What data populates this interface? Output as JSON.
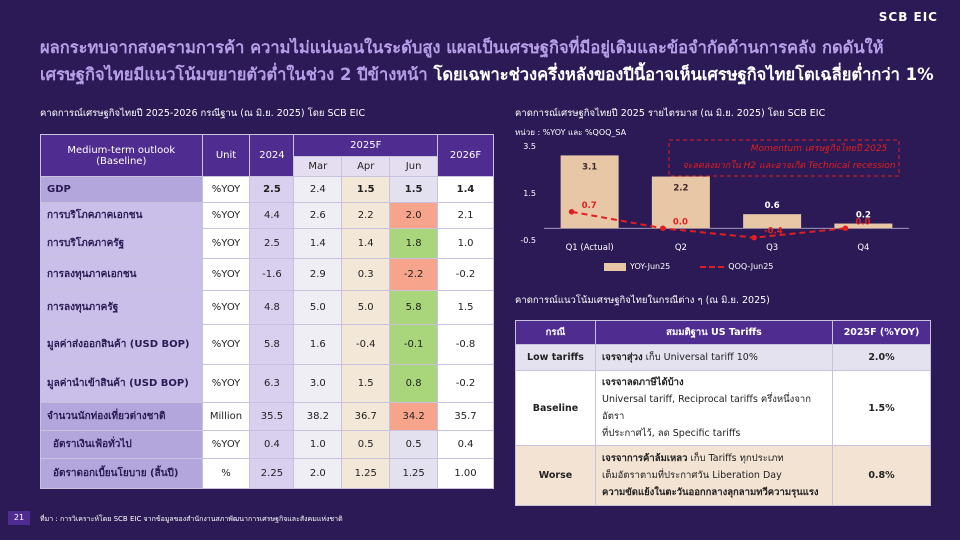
{
  "logo": "SCB EIC",
  "headline": {
    "part1": "ผลกระทบจากสงครามการค้า ความไม่แน่นอนในระดับสูง แผลเป็นเศรษฐกิจที่มีอยู่เดิมและข้อจำกัดด้านการคลัง กดดันให้ เศรษฐกิจไทยมีแนวโน้มขยายตัวต่ำในช่วง 2 ปีข้างหน้า ",
    "part2": "โดยเฉพาะช่วงครึ่งหลังของปีนี้อาจเห็นเศรษฐกิจไทยโตเฉลี่ยต่ำกว่า 1%"
  },
  "left_title": "คาดการณ์เศรษฐกิจไทยปี 2025-2026 กรณีฐาน (ณ มิ.ย. 2025) โดย SCB EIC",
  "left_table": {
    "h_outlook": "Medium-term outlook",
    "h_baseline": "(Baseline)",
    "h_unit": "Unit",
    "h_2024": "2024",
    "h_2025f": "2025F",
    "h_mar": "Mar",
    "h_apr": "Apr",
    "h_jun": "Jun",
    "h_2026f": "2026F",
    "rows": [
      {
        "label": "GDP",
        "unit": "%YOY",
        "y2024": "2.5",
        "mar": "2.4",
        "apr": "1.5",
        "jun": "1.5",
        "f26": "1.4"
      },
      {
        "label": "การบริโภคภาคเอกชน",
        "unit": "%YOY",
        "y2024": "4.4",
        "mar": "2.6",
        "apr": "2.2",
        "jun": "2.0",
        "f26": "2.1"
      },
      {
        "label": "การบริโภคภาครัฐ",
        "unit": "%YOY",
        "y2024": "2.5",
        "mar": "1.4",
        "apr": "1.4",
        "jun": "1.8",
        "f26": "1.0"
      },
      {
        "label": "การลงทุนภาคเอกชน",
        "unit": "%YOY",
        "y2024": "-1.6",
        "mar": "2.9",
        "apr": "0.3",
        "jun": "-2.2",
        "f26": "-0.2"
      },
      {
        "label": "การลงทุนภาครัฐ",
        "unit": "%YOY",
        "y2024": "4.8",
        "mar": "5.0",
        "apr": "5.0",
        "jun": "5.8",
        "f26": "1.5"
      },
      {
        "label": "มูลค่าส่งออกสินค้า (USD BOP)",
        "unit": "%YOY",
        "y2024": "5.8",
        "mar": "1.6",
        "apr": "-0.4",
        "jun": "-0.1",
        "f26": "-0.8"
      },
      {
        "label": "มูลค่านำเข้าสินค้า (USD BOP)",
        "unit": "%YOY",
        "y2024": "6.3",
        "mar": "3.0",
        "apr": "1.5",
        "jun": "0.8",
        "f26": "-0.2"
      },
      {
        "label": "จำนวนนักท่องเที่ยวต่างชาติ",
        "unit": "Million",
        "y2024": "35.5",
        "mar": "38.2",
        "apr": "36.7",
        "jun": "34.2",
        "f26": "35.7"
      },
      {
        "label": "อัตราเงินเฟ้อทั่วไป",
        "unit": "%YOY",
        "y2024": "0.4",
        "mar": "1.0",
        "apr": "0.5",
        "jun": "0.5",
        "f26": "0.4"
      },
      {
        "label": "อัตราดอกเบี้ยนโยบาย (สิ้นปี)",
        "unit": "%",
        "y2024": "2.25",
        "mar": "2.0",
        "apr": "1.25",
        "jun": "1.25",
        "f26": "1.00"
      }
    ]
  },
  "chart_title": "คาดการณ์เศรษฐกิจไทยปี 2025 รายไตรมาส (ณ มิ.ย. 2025) โดย SCB EIC",
  "chart_data": {
    "type": "bar",
    "unit_label": "หน่วย : %YOY และ %QOQ_SA",
    "categories": [
      "Q1 (Actual)",
      "Q2",
      "Q3",
      "Q4"
    ],
    "ylim": [
      -0.5,
      3.5
    ],
    "yticks": [
      "3.5",
      "1.5",
      "-0.5"
    ],
    "series": [
      {
        "name": "YOY-Jun25",
        "type": "bar",
        "values": [
          3.1,
          2.2,
          0.6,
          0.2
        ],
        "labels": [
          "3.1",
          "2.2",
          "0.6",
          "0.2"
        ],
        "color": "#e7c7a6"
      },
      {
        "name": "QOQ-Jun25",
        "type": "line",
        "values": [
          0.7,
          0.0,
          -0.4,
          0.0
        ],
        "labels": [
          "0.7",
          "0.0",
          "-0.4",
          "0.0"
        ],
        "color": "#e02020"
      }
    ],
    "annotation_line1": "Momentum เศรษฐกิจไทยปี 2025",
    "annotation_line2": "จะลดลงมากใน H2 และอาจเกิด Technical recession"
  },
  "right_title": "คาดการณ์แนวโน้มเศรษฐกิจไทยในกรณีต่าง ๆ (ณ มิ.ย. 2025)",
  "right_table": {
    "h_case": "กรณี",
    "h_assume": "สมมติฐาน US Tariffs",
    "h_val": "2025F (%YOY)",
    "low": {
      "case": "Low tariffs",
      "bold": "เจรจาสุ่วง",
      "text": " เก็บ Universal tariff 10%",
      "val": "2.0%"
    },
    "base": {
      "case": "Baseline",
      "bold": "เจรจาลดภาษีได้บ้าง",
      "text1": "Universal tariff, Reciprocal tariffs ครึ่งหนึ่งจากอัตรา",
      "text2": "ที่ประกาศไว้, ลด Specific tariffs",
      "val": "1.5%"
    },
    "worse": {
      "case": "Worse",
      "bold": "เจรจาการค้าล้มเหลว",
      "text1": " เก็บ Tariffs ทุกประเภท",
      "text2": "เต็มอัตราตามที่ประกาศวัน Liberation Day",
      "bold2": "ความขัดแย้งในตะวันออกกลางลุกลามทวีความรุนแรง",
      "val": "0.8%"
    }
  },
  "page_number": "21",
  "source": "ที่มา : การวิเคราะห์โดย SCB EIC จากข้อมูลของสำนักงานสภาพัฒนาการเศรษฐกิจและสังคมแห่งชาติ"
}
